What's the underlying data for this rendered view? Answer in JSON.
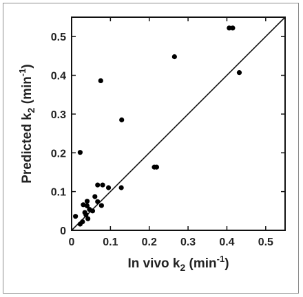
{
  "chart_data": {
    "type": "scatter",
    "xlabel": {
      "prefix": "In vivo k",
      "subscript": "2",
      "unit_open": " (min",
      "superscript": "-1",
      "unit_close": ")"
    },
    "ylabel": {
      "prefix": "Predicted k",
      "subscript": "2",
      "unit_open": " (min",
      "superscript": "-1",
      "unit_close": ")"
    },
    "xlim": [
      0,
      0.55
    ],
    "ylim": [
      0,
      0.55
    ],
    "x_ticks": [
      0,
      0.1,
      0.2,
      0.3,
      0.4,
      0.5
    ],
    "y_ticks": [
      0,
      0.1,
      0.2,
      0.3,
      0.4,
      0.5
    ],
    "x_tick_labels": [
      "0",
      "0.1",
      "0.2",
      "0.3",
      "0.4",
      "0.5"
    ],
    "y_tick_labels": [
      "0",
      "0.1",
      "0.2",
      "0.3",
      "0.4",
      "0.5"
    ],
    "grid": false,
    "reference_line": {
      "from": [
        0,
        0
      ],
      "to": [
        0.55,
        0.55
      ]
    },
    "points": [
      {
        "x": 0.406,
        "y": 0.522
      },
      {
        "x": 0.415,
        "y": 0.522
      },
      {
        "x": 0.265,
        "y": 0.448
      },
      {
        "x": 0.432,
        "y": 0.407
      },
      {
        "x": 0.075,
        "y": 0.386
      },
      {
        "x": 0.129,
        "y": 0.285
      },
      {
        "x": 0.022,
        "y": 0.201
      },
      {
        "x": 0.213,
        "y": 0.163
      },
      {
        "x": 0.219,
        "y": 0.163
      },
      {
        "x": 0.067,
        "y": 0.117
      },
      {
        "x": 0.08,
        "y": 0.117
      },
      {
        "x": 0.095,
        "y": 0.11
      },
      {
        "x": 0.128,
        "y": 0.11
      },
      {
        "x": 0.06,
        "y": 0.087
      },
      {
        "x": 0.04,
        "y": 0.075
      },
      {
        "x": 0.03,
        "y": 0.066
      },
      {
        "x": 0.04,
        "y": 0.063
      },
      {
        "x": 0.067,
        "y": 0.074
      },
      {
        "x": 0.077,
        "y": 0.064
      },
      {
        "x": 0.046,
        "y": 0.054
      },
      {
        "x": 0.054,
        "y": 0.05
      },
      {
        "x": 0.034,
        "y": 0.046
      },
      {
        "x": 0.037,
        "y": 0.04
      },
      {
        "x": 0.01,
        "y": 0.036
      },
      {
        "x": 0.042,
        "y": 0.03
      },
      {
        "x": 0.028,
        "y": 0.022
      },
      {
        "x": 0.022,
        "y": 0.016
      }
    ]
  }
}
